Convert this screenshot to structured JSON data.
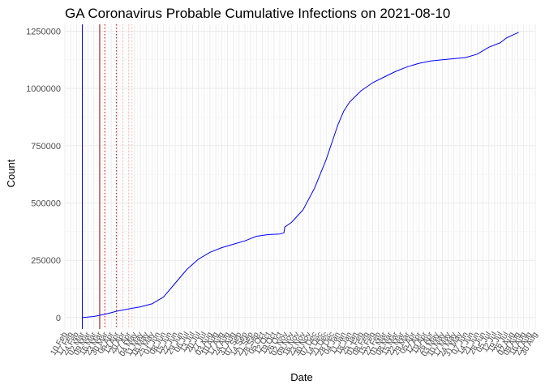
{
  "chart_data": {
    "type": "line",
    "title": "GA Coronavirus Probable Cumulative Infections on 2021-08-10",
    "xlabel": "Date",
    "ylabel": "Count",
    "x_range": [
      "2020-02-10",
      "2021-08-30"
    ],
    "ylim": [
      -50000,
      1280000
    ],
    "y_ticks": [
      0,
      250000,
      500000,
      750000,
      1000000,
      1250000
    ],
    "y_tick_labels": [
      "0",
      "250000",
      "500000",
      "750000",
      "1000000",
      "1250000"
    ],
    "x_ticks": [
      "2020-02-10",
      "2020-02-17",
      "2020-02-24",
      "2020-03-02",
      "2020-03-09",
      "2020-03-16",
      "2020-03-23",
      "2020-03-30",
      "2020-04-06",
      "2020-04-13",
      "2020-04-20",
      "2020-04-27",
      "2020-05-04",
      "2020-05-11",
      "2020-05-18",
      "2020-05-25",
      "2020-06-01",
      "2020-06-08",
      "2020-06-15",
      "2020-06-22",
      "2020-06-29",
      "2020-07-06",
      "2020-07-13",
      "2020-07-20",
      "2020-07-27",
      "2020-08-03",
      "2020-08-10",
      "2020-08-17",
      "2020-08-24",
      "2020-08-31",
      "2020-09-07",
      "2020-09-14",
      "2020-09-21",
      "2020-09-28",
      "2020-10-05",
      "2020-10-12",
      "2020-10-19",
      "2020-10-26",
      "2020-11-02",
      "2020-11-09",
      "2020-11-16",
      "2020-11-23",
      "2020-11-30",
      "2020-12-07",
      "2020-12-14",
      "2020-12-21",
      "2020-12-28",
      "2021-01-04",
      "2021-01-11",
      "2021-01-18",
      "2021-01-25",
      "2021-02-01",
      "2021-02-08",
      "2021-02-15",
      "2021-02-22",
      "2021-03-01",
      "2021-03-08",
      "2021-03-15",
      "2021-03-22",
      "2021-03-29",
      "2021-04-05",
      "2021-04-12",
      "2021-04-19",
      "2021-04-26",
      "2021-05-03",
      "2021-05-10",
      "2021-05-17",
      "2021-05-24",
      "2021-05-31",
      "2021-06-07",
      "2021-06-14",
      "2021-06-21",
      "2021-06-28",
      "2021-07-05",
      "2021-07-12",
      "2021-07-19",
      "2021-07-26",
      "2021-08-02",
      "2021-08-09",
      "2021-08-16",
      "2021-08-23",
      "2021-08-30"
    ],
    "x_tick_labels": [
      "10 Feb",
      "17 Feb",
      "24 Feb",
      "02 Mar",
      "09 Mar",
      "16 Mar",
      "23 Mar",
      "30 Mar",
      "06 Apr",
      "13 Apr",
      "20 Apr",
      "27 Apr",
      "04 May",
      "11 May",
      "18 May",
      "25 May",
      "01 Jun",
      "08 Jun",
      "15 Jun",
      "22 Jun",
      "29 Jun",
      "06 Jul",
      "13 Jul",
      "20 Jul",
      "27 Jul",
      "03 Aug",
      "10 Aug",
      "17 Aug",
      "24 Aug",
      "31 Aug",
      "07 Sep",
      "14 Sep",
      "21 Sep",
      "28 Sep",
      "05 Oct",
      "12 Oct",
      "19 Oct",
      "26 Oct",
      "02 Nov",
      "09 Nov",
      "16 Nov",
      "23 Nov",
      "30 Nov",
      "07 Dec",
      "14 Dec",
      "21 Dec",
      "28 Dec",
      "04 Jan",
      "11 Jan",
      "18 Jan",
      "25 Jan",
      "01 Feb",
      "08 Feb",
      "15 Feb",
      "22 Feb",
      "01 Mar",
      "08 Mar",
      "15 Mar",
      "22 Mar",
      "29 Mar",
      "05 Apr",
      "12 Apr",
      "19 Apr",
      "26 Apr",
      "03 May",
      "10 May",
      "17 May",
      "24 May",
      "31 May",
      "07 Jun",
      "14 Jun",
      "21 Jun",
      "28 Jun",
      "05 Jul",
      "12 Jul",
      "19 Jul",
      "26 Jul",
      "02 Aug",
      "09 Aug",
      "16 Aug",
      "23 Aug",
      "30 Aug"
    ],
    "grid": true,
    "series": [
      {
        "color": "#0000ff",
        "x": [
          "2020-03-02",
          "2020-03-16",
          "2020-03-30",
          "2020-04-13",
          "2020-04-27",
          "2020-05-11",
          "2020-05-25",
          "2020-06-08",
          "2020-06-22",
          "2020-07-06",
          "2020-07-20",
          "2020-08-03",
          "2020-08-17",
          "2020-08-31",
          "2020-09-14",
          "2020-09-28",
          "2020-10-12",
          "2020-10-26",
          "2020-10-31",
          "2020-11-01",
          "2020-11-09",
          "2020-11-23",
          "2020-12-07",
          "2020-12-21",
          "2021-01-04",
          "2021-01-11",
          "2021-01-18",
          "2021-02-01",
          "2021-02-15",
          "2021-03-01",
          "2021-03-15",
          "2021-03-29",
          "2021-04-12",
          "2021-04-26",
          "2021-05-10",
          "2021-05-24",
          "2021-06-07",
          "2021-06-21",
          "2021-07-05",
          "2021-07-19",
          "2021-07-26",
          "2021-08-02",
          "2021-08-10"
        ],
        "y": [
          0,
          5000,
          15000,
          28000,
          38000,
          47000,
          60000,
          90000,
          150000,
          210000,
          255000,
          285000,
          305000,
          320000,
          335000,
          355000,
          362000,
          365000,
          370000,
          395000,
          415000,
          470000,
          565000,
          690000,
          840000,
          900000,
          940000,
          990000,
          1025000,
          1050000,
          1075000,
          1095000,
          1110000,
          1120000,
          1125000,
          1130000,
          1135000,
          1150000,
          1180000,
          1200000,
          1220000,
          1232000,
          1245000
        ]
      }
    ],
    "vertical_lines": [
      {
        "x": "2020-03-02",
        "color": "#0000ff",
        "style": "solid"
      },
      {
        "x": "2020-03-23",
        "color": "#8b0000",
        "style": "solid"
      },
      {
        "x": "2020-03-29",
        "color": "#ff0000",
        "style": "dotted"
      },
      {
        "x": "2020-04-12",
        "color": "#ff0000",
        "style": "dotted"
      },
      {
        "x": "2020-04-20",
        "color": "#ffb0b0",
        "style": "dotted"
      },
      {
        "x": "2020-04-27",
        "color": "#ffb0b0",
        "style": "dotted"
      },
      {
        "x": "2020-05-01",
        "color": "#ffb0b0",
        "style": "dotted"
      }
    ]
  }
}
